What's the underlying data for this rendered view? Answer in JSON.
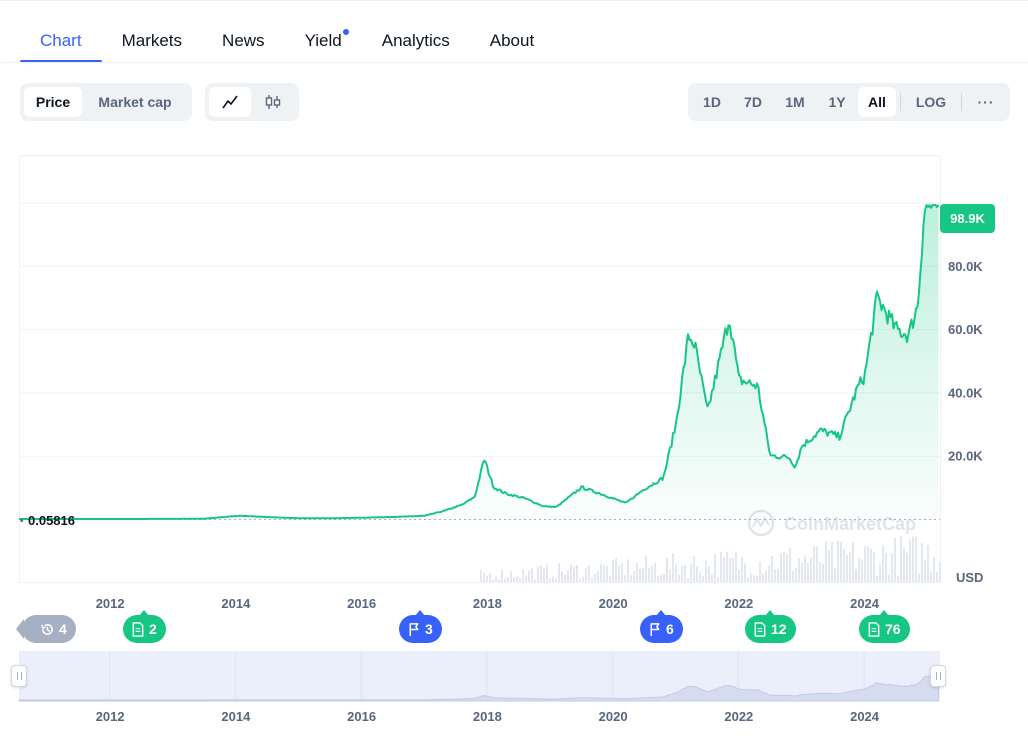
{
  "tabs": [
    {
      "label": "Chart",
      "active": true
    },
    {
      "label": "Markets"
    },
    {
      "label": "News"
    },
    {
      "label": "Yield",
      "dot": true
    },
    {
      "label": "Analytics"
    },
    {
      "label": "About"
    }
  ],
  "metric_toggle": {
    "options": [
      "Price",
      "Market cap"
    ],
    "selected": "Price"
  },
  "chart_style": {
    "options": [
      "line-chart-icon",
      "candlestick-icon"
    ],
    "selected": "line-chart-icon"
  },
  "ranges": {
    "options": [
      "1D",
      "7D",
      "1M",
      "1Y",
      "All"
    ],
    "selected": "All",
    "log_label": "LOG",
    "more_label": "···"
  },
  "colors": {
    "accent": "#3861fb",
    "up": "#16c784",
    "text_muted": "#58667e"
  },
  "chart_data": {
    "type": "area",
    "x_unit": "year",
    "x": [
      2010.6,
      2011.0,
      2011.5,
      2012.0,
      2012.5,
      2013.0,
      2013.5,
      2013.9,
      2014.1,
      2014.5,
      2015.0,
      2015.5,
      2016.0,
      2016.5,
      2017.0,
      2017.3,
      2017.6,
      2017.8,
      2017.95,
      2018.1,
      2018.3,
      2018.6,
      2018.9,
      2019.1,
      2019.5,
      2019.8,
      2020.2,
      2020.5,
      2020.8,
      2021.0,
      2021.2,
      2021.3,
      2021.5,
      2021.6,
      2021.85,
      2022.0,
      2022.3,
      2022.5,
      2022.8,
      2022.9,
      2023.0,
      2023.3,
      2023.6,
      2023.9,
      2024.0,
      2024.2,
      2024.5,
      2024.7,
      2024.85,
      2024.95,
      2025.05
    ],
    "y": [
      0.05816,
      10,
      12,
      10,
      12,
      30,
      90,
      800,
      1000,
      600,
      250,
      230,
      400,
      650,
      1000,
      2500,
      4500,
      7000,
      19000,
      10000,
      8000,
      6500,
      4000,
      3800,
      10000,
      8000,
      5000,
      9500,
      13000,
      30000,
      58000,
      55000,
      34000,
      42000,
      64000,
      44000,
      42000,
      20000,
      19500,
      16500,
      23000,
      28000,
      26000,
      42000,
      45000,
      70000,
      60000,
      58000,
      68000,
      98000,
      98900
    ],
    "y_ticks": [
      "20.0K",
      "40.0K",
      "60.0K",
      "80.0K"
    ],
    "y_tick_values": [
      20000,
      40000,
      60000,
      80000
    ],
    "ylim": [
      0,
      115000
    ],
    "x_ticks": [
      "2012",
      "2014",
      "2016",
      "2018",
      "2020",
      "2022",
      "2024"
    ],
    "x_tick_values": [
      2012,
      2014,
      2016,
      2018,
      2020,
      2022,
      2024
    ],
    "xlim": [
      2010.55,
      2025.2
    ],
    "current_price_label": "98.9K",
    "start_price_label": "0.05816",
    "currency_label": "USD",
    "watermark": "CoinMarketCap",
    "grid": true,
    "log_scale": false
  },
  "events": [
    {
      "kind": "history",
      "count": "4",
      "icon": "history-icon",
      "color": "gray"
    },
    {
      "kind": "document",
      "count": "2",
      "icon": "document-icon",
      "color": "green",
      "year": 2012.5
    },
    {
      "kind": "flag",
      "count": "3",
      "icon": "flag-icon",
      "color": "blue",
      "year": 2016.9
    },
    {
      "kind": "flag",
      "count": "6",
      "icon": "flag-icon",
      "color": "blue",
      "year": 2020.7
    },
    {
      "kind": "document",
      "count": "12",
      "icon": "document-icon",
      "color": "green",
      "year": 2022.4
    },
    {
      "kind": "document",
      "count": "76",
      "icon": "document-icon",
      "color": "green",
      "year": 2024.2
    }
  ],
  "navigator": {
    "x_ticks": [
      "2012",
      "2014",
      "2016",
      "2018",
      "2020",
      "2022",
      "2024"
    ]
  }
}
